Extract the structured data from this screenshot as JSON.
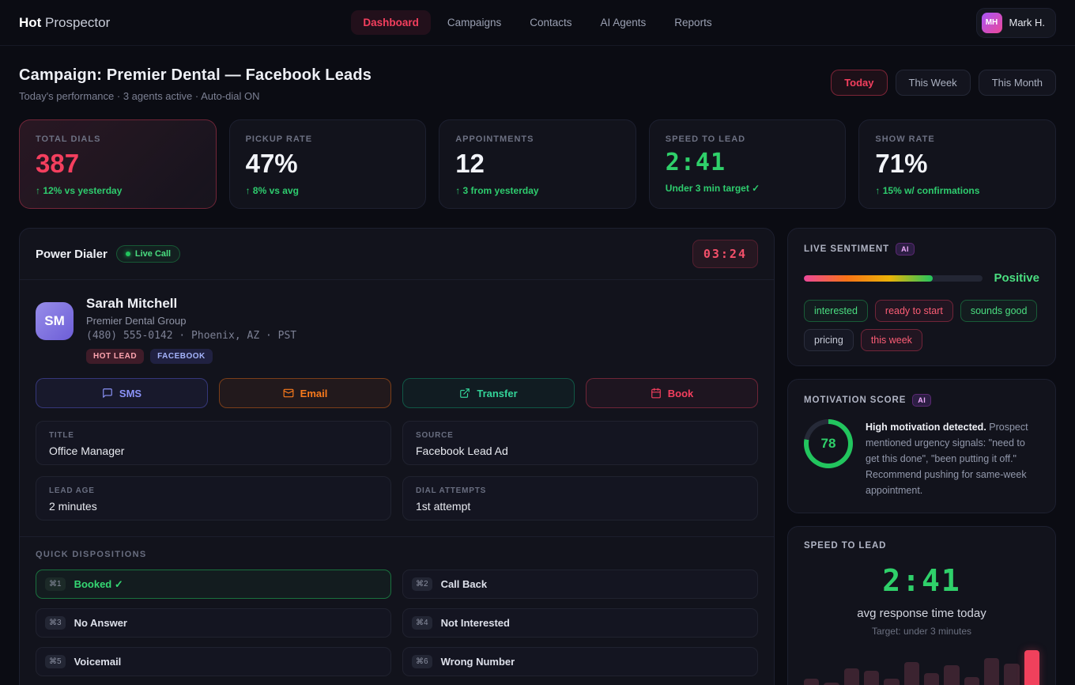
{
  "colors": {
    "red": "#f43f5e",
    "green": "#22c55e",
    "indigo": "#818cf8",
    "orange": "#f97316"
  },
  "brand": {
    "bold": "Hot",
    "rest": " Prospector"
  },
  "nav": {
    "items": [
      {
        "label": "Dashboard",
        "active": true
      },
      {
        "label": "Campaigns",
        "active": false
      },
      {
        "label": "Contacts",
        "active": false
      },
      {
        "label": "AI Agents",
        "active": false
      },
      {
        "label": "Reports",
        "active": false
      }
    ],
    "user": {
      "initials": "MH",
      "name": "Mark H."
    }
  },
  "header": {
    "title": "Campaign: Premier Dental — Facebook Leads",
    "subtitle": "Today's performance · 3 agents active · Auto-dial ON",
    "filters": [
      {
        "label": "Today",
        "active": true
      },
      {
        "label": "This Week",
        "active": false
      },
      {
        "label": "This Month",
        "active": false
      }
    ]
  },
  "stats": [
    {
      "label": "TOTAL DIALS",
      "value": "387",
      "delta": "↑ 12% vs yesterday"
    },
    {
      "label": "PICKUP RATE",
      "value": "47%",
      "delta": "↑ 8% vs avg"
    },
    {
      "label": "APPOINTMENTS",
      "value": "12",
      "delta": "↑ 3 from yesterday"
    },
    {
      "label": "SPEED TO LEAD",
      "value": "2:41",
      "delta": "Under 3 min target ✓"
    },
    {
      "label": "SHOW RATE",
      "value": "71%",
      "delta": "↑ 15% w/ confirmations"
    }
  ],
  "dialer": {
    "title": "Power Dialer",
    "live_badge": "Live Call",
    "timer": "03:24",
    "contact": {
      "initials": "SM",
      "name": "Sarah Mitchell",
      "company": "Premier Dental Group",
      "phone_line": "(480) 555-0142 · Phoenix, AZ · PST",
      "tags": [
        {
          "label": "HOT LEAD",
          "color": "red"
        },
        {
          "label": "FACEBOOK",
          "color": "indigo"
        }
      ]
    },
    "actions": [
      {
        "label": "SMS",
        "icon": "chat-icon"
      },
      {
        "label": "Email",
        "icon": "envelope-icon"
      },
      {
        "label": "Transfer",
        "icon": "external-link-icon"
      },
      {
        "label": "Book",
        "icon": "calendar-icon"
      }
    ],
    "fields": [
      {
        "label": "TITLE",
        "value": "Office Manager"
      },
      {
        "label": "SOURCE",
        "value": "Facebook Lead Ad"
      },
      {
        "label": "LEAD AGE",
        "value": "2 minutes"
      },
      {
        "label": "DIAL ATTEMPTS",
        "value": "1st attempt"
      }
    ],
    "dispositions": {
      "title": "QUICK DISPOSITIONS",
      "items": [
        {
          "key": "⌘1",
          "label": "Booked ✓",
          "active": true
        },
        {
          "key": "⌘2",
          "label": "Call Back",
          "active": false
        },
        {
          "key": "⌘3",
          "label": "No Answer",
          "active": false
        },
        {
          "key": "⌘4",
          "label": "Not Interested",
          "active": false
        },
        {
          "key": "⌘5",
          "label": "Voicemail",
          "active": false
        },
        {
          "key": "⌘6",
          "label": "Wrong Number",
          "active": false
        }
      ]
    }
  },
  "sentiment": {
    "title": "LIVE SENTIMENT",
    "ai_badge": "AI",
    "value_label": "Positive",
    "fill_pct": 72,
    "tags": [
      {
        "label": "interested",
        "color": "green"
      },
      {
        "label": "ready to start",
        "color": "red"
      },
      {
        "label": "sounds good",
        "color": "green"
      },
      {
        "label": "pricing",
        "color": "gray"
      },
      {
        "label": "this week",
        "color": "red"
      }
    ]
  },
  "motivation": {
    "title": "MOTIVATION SCORE",
    "ai_badge": "AI",
    "score": 78,
    "bold": "High motivation detected.",
    "text": " Prospect mentioned urgency signals: \"need to get this done\", \"been putting it off.\" Recommend pushing for same-week appointment."
  },
  "speed": {
    "title": "SPEED TO LEAD",
    "value": "2:41",
    "caption": "avg response time today",
    "target": "Target: under 3 minutes"
  },
  "chart_data": {
    "type": "bar",
    "title": "Speed to lead response-time history",
    "values": [
      38,
      30,
      60,
      55,
      38,
      75,
      50,
      68,
      42,
      82,
      70,
      100
    ],
    "highlight_index": 11,
    "normal_color": "#3b2330",
    "highlight_color": "#f0415c"
  }
}
